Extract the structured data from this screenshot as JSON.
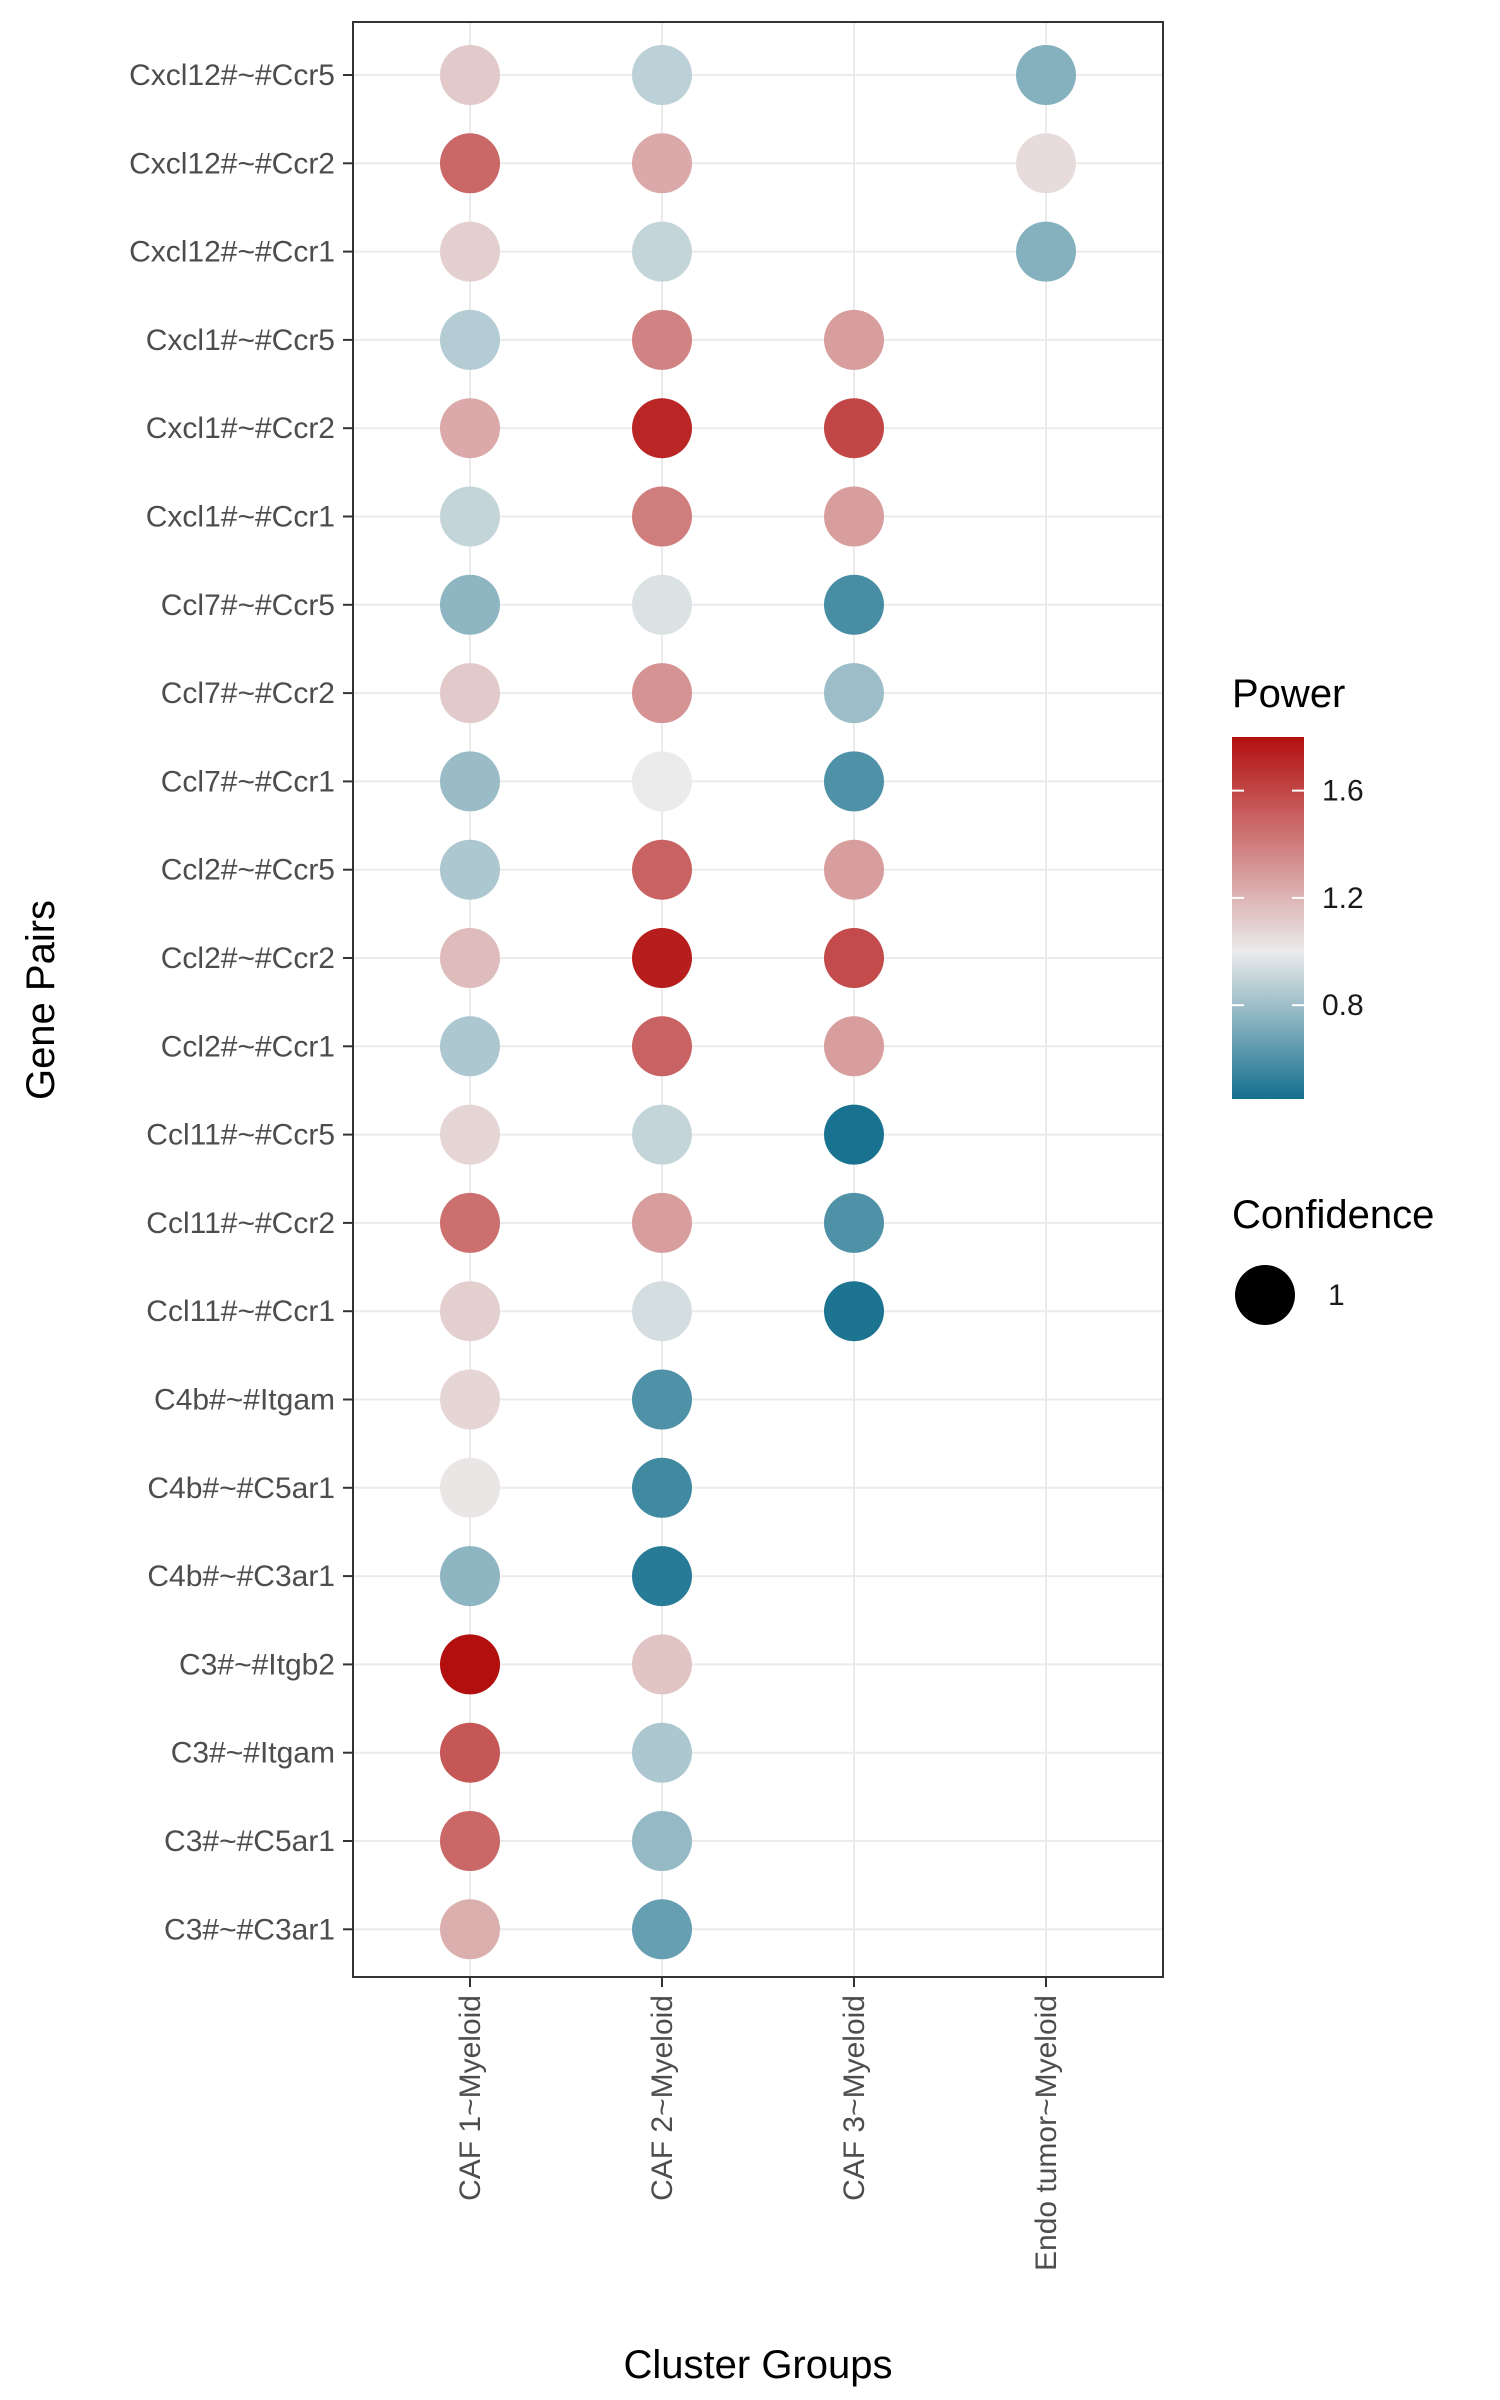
{
  "chart_data": {
    "type": "scatter",
    "xlabel": "Cluster Groups",
    "ylabel": "Gene Pairs",
    "x_categories": [
      "CAF 1~Myeloid",
      "CAF 2~Myeloid",
      "CAF 3~Myeloid",
      "Endo tumor~Myeloid"
    ],
    "y_categories": [
      "Cxcl12#~#Ccr5",
      "Cxcl12#~#Ccr2",
      "Cxcl12#~#Ccr1",
      "Cxcl1#~#Ccr5",
      "Cxcl1#~#Ccr2",
      "Cxcl1#~#Ccr1",
      "Ccl7#~#Ccr5",
      "Ccl7#~#Ccr2",
      "Ccl7#~#Ccr1",
      "Ccl2#~#Ccr5",
      "Ccl2#~#Ccr2",
      "Ccl2#~#Ccr1",
      "Ccl11#~#Ccr5",
      "Ccl11#~#Ccr2",
      "Ccl11#~#Ccr1",
      "C4b#~#Itgam",
      "C4b#~#C5ar1",
      "C4b#~#C3ar1",
      "C3#~#Itgb2",
      "C3#~#Itgam",
      "C3#~#C5ar1",
      "C3#~#C3ar1"
    ],
    "points": [
      {
        "x": "CAF 1~Myeloid",
        "y": "Cxcl12#~#Ccr5",
        "power": 1.12,
        "confidence": 1
      },
      {
        "x": "CAF 1~Myeloid",
        "y": "Cxcl12#~#Ccr2",
        "power": 1.48,
        "confidence": 1
      },
      {
        "x": "CAF 1~Myeloid",
        "y": "Cxcl12#~#Ccr1",
        "power": 1.1,
        "confidence": 1
      },
      {
        "x": "CAF 1~Myeloid",
        "y": "Cxcl1#~#Ccr5",
        "power": 0.86,
        "confidence": 1
      },
      {
        "x": "CAF 1~Myeloid",
        "y": "Cxcl1#~#Ccr2",
        "power": 1.24,
        "confidence": 1
      },
      {
        "x": "CAF 1~Myeloid",
        "y": "Cxcl1#~#Ccr1",
        "power": 0.9,
        "confidence": 1
      },
      {
        "x": "CAF 1~Myeloid",
        "y": "Ccl7#~#Ccr5",
        "power": 0.76,
        "confidence": 1
      },
      {
        "x": "CAF 1~Myeloid",
        "y": "Ccl7#~#Ccr2",
        "power": 1.12,
        "confidence": 1
      },
      {
        "x": "CAF 1~Myeloid",
        "y": "Ccl7#~#Ccr1",
        "power": 0.79,
        "confidence": 1
      },
      {
        "x": "CAF 1~Myeloid",
        "y": "Ccl2#~#Ccr5",
        "power": 0.84,
        "confidence": 1
      },
      {
        "x": "CAF 1~Myeloid",
        "y": "Ccl2#~#Ccr2",
        "power": 1.17,
        "confidence": 1
      },
      {
        "x": "CAF 1~Myeloid",
        "y": "Ccl2#~#Ccr1",
        "power": 0.84,
        "confidence": 1
      },
      {
        "x": "CAF 1~Myeloid",
        "y": "Ccl11#~#Ccr5",
        "power": 1.08,
        "confidence": 1
      },
      {
        "x": "CAF 1~Myeloid",
        "y": "Ccl11#~#Ccr2",
        "power": 1.45,
        "confidence": 1
      },
      {
        "x": "CAF 1~Myeloid",
        "y": "Ccl11#~#Ccr1",
        "power": 1.1,
        "confidence": 1
      },
      {
        "x": "CAF 1~Myeloid",
        "y": "C4b#~#Itgam",
        "power": 1.08,
        "confidence": 1
      },
      {
        "x": "CAF 1~Myeloid",
        "y": "C4b#~#C5ar1",
        "power": 1.02,
        "confidence": 1
      },
      {
        "x": "CAF 1~Myeloid",
        "y": "C4b#~#C3ar1",
        "power": 0.76,
        "confidence": 1
      },
      {
        "x": "CAF 1~Myeloid",
        "y": "C3#~#Itgb2",
        "power": 1.8,
        "confidence": 1
      },
      {
        "x": "CAF 1~Myeloid",
        "y": "C3#~#Itgam",
        "power": 1.54,
        "confidence": 1
      },
      {
        "x": "CAF 1~Myeloid",
        "y": "C3#~#C5ar1",
        "power": 1.48,
        "confidence": 1
      },
      {
        "x": "CAF 1~Myeloid",
        "y": "C3#~#C3ar1",
        "power": 1.22,
        "confidence": 1
      },
      {
        "x": "CAF 2~Myeloid",
        "y": "Cxcl12#~#Ccr5",
        "power": 0.88,
        "confidence": 1
      },
      {
        "x": "CAF 2~Myeloid",
        "y": "Cxcl12#~#Ccr2",
        "power": 1.24,
        "confidence": 1
      },
      {
        "x": "CAF 2~Myeloid",
        "y": "Cxcl12#~#Ccr1",
        "power": 0.9,
        "confidence": 1
      },
      {
        "x": "CAF 2~Myeloid",
        "y": "Cxcl1#~#Ccr5",
        "power": 1.38,
        "confidence": 1
      },
      {
        "x": "CAF 2~Myeloid",
        "y": "Cxcl1#~#Ccr2",
        "power": 1.72,
        "confidence": 1
      },
      {
        "x": "CAF 2~Myeloid",
        "y": "Cxcl1#~#Ccr1",
        "power": 1.4,
        "confidence": 1
      },
      {
        "x": "CAF 2~Myeloid",
        "y": "Ccl7#~#Ccr5",
        "power": 0.96,
        "confidence": 1
      },
      {
        "x": "CAF 2~Myeloid",
        "y": "Ccl7#~#Ccr2",
        "power": 1.32,
        "confidence": 1
      },
      {
        "x": "CAF 2~Myeloid",
        "y": "Ccl7#~#Ccr1",
        "power": 1.0,
        "confidence": 1
      },
      {
        "x": "CAF 2~Myeloid",
        "y": "Ccl2#~#Ccr5",
        "power": 1.5,
        "confidence": 1
      },
      {
        "x": "CAF 2~Myeloid",
        "y": "Ccl2#~#Ccr2",
        "power": 1.75,
        "confidence": 1
      },
      {
        "x": "CAF 2~Myeloid",
        "y": "Ccl2#~#Ccr1",
        "power": 1.5,
        "confidence": 1
      },
      {
        "x": "CAF 2~Myeloid",
        "y": "Ccl11#~#Ccr5",
        "power": 0.9,
        "confidence": 1
      },
      {
        "x": "CAF 2~Myeloid",
        "y": "Ccl11#~#Ccr2",
        "power": 1.28,
        "confidence": 1
      },
      {
        "x": "CAF 2~Myeloid",
        "y": "Ccl11#~#Ccr1",
        "power": 0.94,
        "confidence": 1
      },
      {
        "x": "CAF 2~Myeloid",
        "y": "C4b#~#Itgam",
        "power": 0.6,
        "confidence": 1
      },
      {
        "x": "CAF 2~Myeloid",
        "y": "C4b#~#C5ar1",
        "power": 0.56,
        "confidence": 1
      },
      {
        "x": "CAF 2~Myeloid",
        "y": "C4b#~#C3ar1",
        "power": 0.5,
        "confidence": 1
      },
      {
        "x": "CAF 2~Myeloid",
        "y": "C3#~#Itgb2",
        "power": 1.14,
        "confidence": 1
      },
      {
        "x": "CAF 2~Myeloid",
        "y": "C3#~#Itgam",
        "power": 0.84,
        "confidence": 1
      },
      {
        "x": "CAF 2~Myeloid",
        "y": "C3#~#C5ar1",
        "power": 0.78,
        "confidence": 1
      },
      {
        "x": "CAF 2~Myeloid",
        "y": "C3#~#C3ar1",
        "power": 0.66,
        "confidence": 1
      },
      {
        "x": "CAF 3~Myeloid",
        "y": "Cxcl1#~#Ccr5",
        "power": 1.28,
        "confidence": 1
      },
      {
        "x": "CAF 3~Myeloid",
        "y": "Cxcl1#~#Ccr2",
        "power": 1.6,
        "confidence": 1
      },
      {
        "x": "CAF 3~Myeloid",
        "y": "Cxcl1#~#Ccr1",
        "power": 1.28,
        "confidence": 1
      },
      {
        "x": "CAF 3~Myeloid",
        "y": "Ccl7#~#Ccr5",
        "power": 0.58,
        "confidence": 1
      },
      {
        "x": "CAF 3~Myeloid",
        "y": "Ccl7#~#Ccr2",
        "power": 0.8,
        "confidence": 1
      },
      {
        "x": "CAF 3~Myeloid",
        "y": "Ccl7#~#Ccr1",
        "power": 0.6,
        "confidence": 1
      },
      {
        "x": "CAF 3~Myeloid",
        "y": "Ccl2#~#Ccr5",
        "power": 1.28,
        "confidence": 1
      },
      {
        "x": "CAF 3~Myeloid",
        "y": "Ccl2#~#Ccr2",
        "power": 1.58,
        "confidence": 1
      },
      {
        "x": "CAF 3~Myeloid",
        "y": "Ccl2#~#Ccr1",
        "power": 1.28,
        "confidence": 1
      },
      {
        "x": "CAF 3~Myeloid",
        "y": "Ccl11#~#Ccr5",
        "power": 0.46,
        "confidence": 1
      },
      {
        "x": "CAF 3~Myeloid",
        "y": "Ccl11#~#Ccr2",
        "power": 0.6,
        "confidence": 1
      },
      {
        "x": "CAF 3~Myeloid",
        "y": "Ccl11#~#Ccr1",
        "power": 0.47,
        "confidence": 1
      },
      {
        "x": "Endo tumor~Myeloid",
        "y": "Cxcl12#~#Ccr5",
        "power": 0.74,
        "confidence": 1
      },
      {
        "x": "Endo tumor~Myeloid",
        "y": "Cxcl12#~#Ccr2",
        "power": 1.06,
        "confidence": 1
      },
      {
        "x": "Endo tumor~Myeloid",
        "y": "Cxcl12#~#Ccr1",
        "power": 0.74,
        "confidence": 1
      }
    ],
    "legend": {
      "color_title": "Power",
      "color_ticks": [
        1.6,
        1.2,
        0.8
      ],
      "color_tick_labels": [
        "1.6",
        "1.2",
        "0.8"
      ],
      "color_range": [
        0.45,
        1.8
      ],
      "color_low": "#14708e",
      "color_mid": "#ebebeb",
      "color_high": "#b40f0f",
      "color_midpoint": 1.0,
      "size_title": "Confidence",
      "size_label": "1",
      "placement": "right"
    },
    "grid": true
  }
}
